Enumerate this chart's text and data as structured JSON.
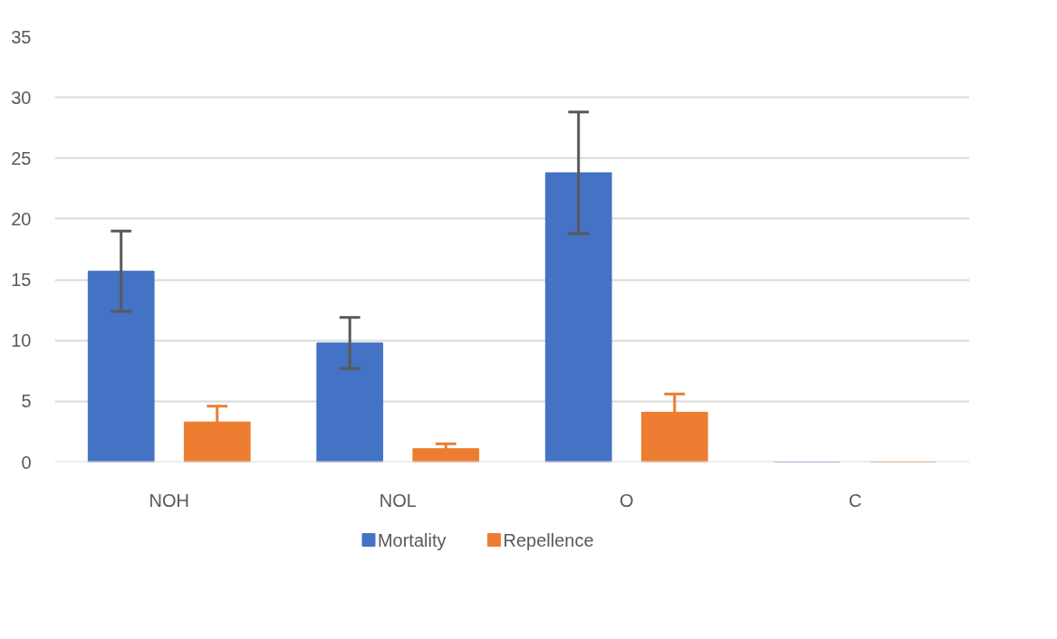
{
  "chart_data": {
    "type": "bar",
    "categories": [
      "NOH",
      "NOL",
      "O",
      "C"
    ],
    "series": [
      {
        "name": "Mortality",
        "color": "#4472c4",
        "values": [
          15.7,
          9.8,
          23.8,
          0
        ],
        "errors": [
          3.3,
          2.1,
          5.0,
          null
        ]
      },
      {
        "name": "Repellence",
        "color": "#ed7d31",
        "values": [
          3.3,
          1.1,
          4.1,
          0
        ],
        "errors": [
          1.3,
          0.4,
          1.5,
          null
        ]
      }
    ],
    "ylim": [
      0,
      35
    ],
    "yticks": [
      0,
      5,
      10,
      15,
      20,
      25,
      30,
      35
    ],
    "grid": "y",
    "legend": "bottom"
  }
}
